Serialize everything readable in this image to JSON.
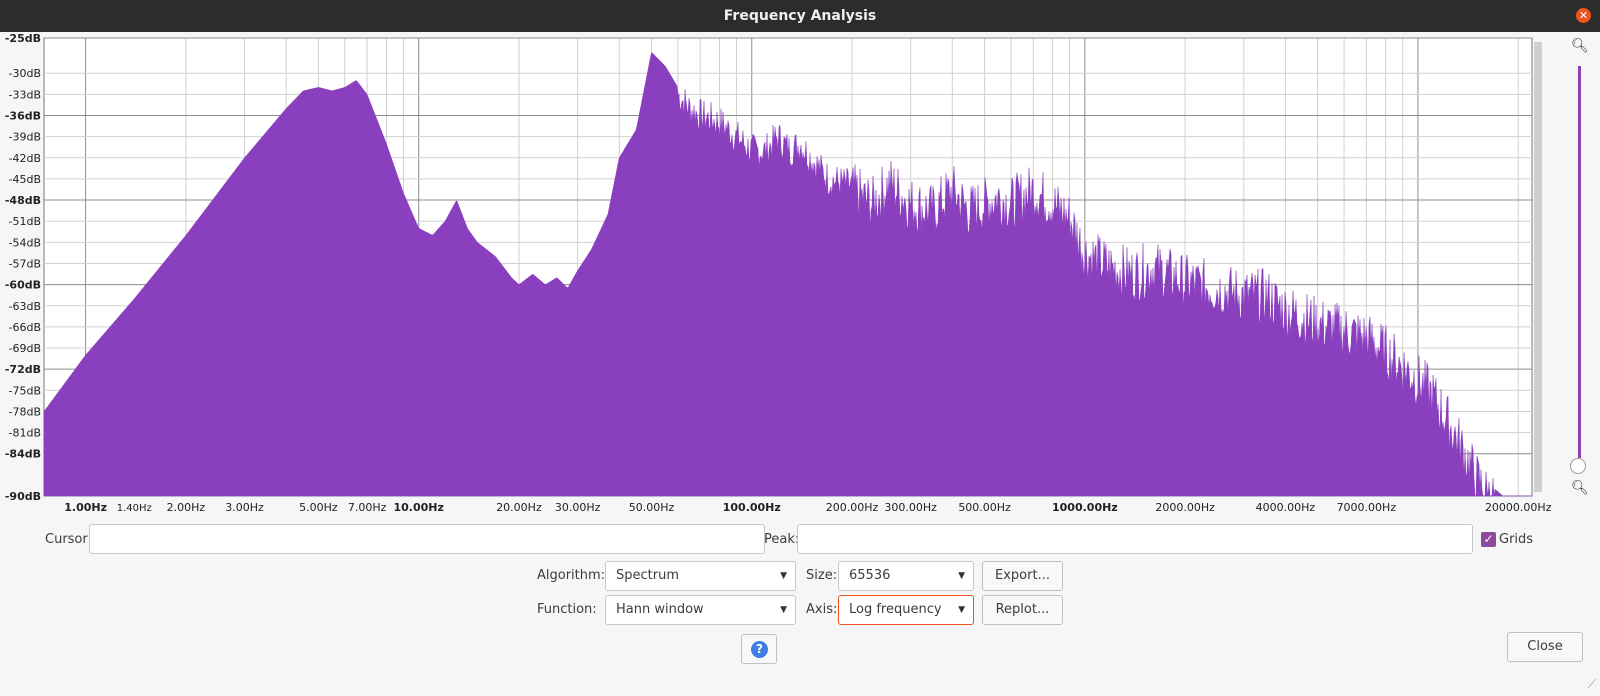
{
  "window": {
    "title": "Frequency Analysis"
  },
  "chart_data": {
    "type": "area",
    "x_scale": "log",
    "xlabel": "",
    "ylabel": "",
    "ylim": [
      -90,
      -25
    ],
    "xlim": [
      0.75,
      22000
    ],
    "grid": true,
    "color": "#8a3fbf",
    "y_ticks": [
      {
        "v": -25,
        "label": "-25dB",
        "bold": true
      },
      {
        "v": -30,
        "label": "-30dB"
      },
      {
        "v": -33,
        "label": "-33dB"
      },
      {
        "v": -36,
        "label": "-36dB",
        "bold": true
      },
      {
        "v": -39,
        "label": "-39dB"
      },
      {
        "v": -42,
        "label": "-42dB"
      },
      {
        "v": -45,
        "label": "-45dB"
      },
      {
        "v": -48,
        "label": "-48dB",
        "bold": true
      },
      {
        "v": -51,
        "label": "-51dB"
      },
      {
        "v": -54,
        "label": "-54dB"
      },
      {
        "v": -57,
        "label": "-57dB"
      },
      {
        "v": -60,
        "label": "-60dB",
        "bold": true
      },
      {
        "v": -63,
        "label": "-63dB"
      },
      {
        "v": -66,
        "label": "-66dB"
      },
      {
        "v": -69,
        "label": "-69dB"
      },
      {
        "v": -72,
        "label": "-72dB",
        "bold": true
      },
      {
        "v": -75,
        "label": "-75dB"
      },
      {
        "v": -78,
        "label": "-78dB"
      },
      {
        "v": -81,
        "label": "-81dB"
      },
      {
        "v": -84,
        "label": "-84dB",
        "bold": true
      },
      {
        "v": -90,
        "label": "-90dB",
        "bold": true
      }
    ],
    "x_ticks": [
      {
        "v": 1,
        "label": "1.00Hz",
        "bold": true
      },
      {
        "v": 1.4,
        "label": "1.40Hz",
        "small": true
      },
      {
        "v": 2,
        "label": "2.00Hz"
      },
      {
        "v": 3,
        "label": "3.00Hz"
      },
      {
        "v": 5,
        "label": "5.00Hz"
      },
      {
        "v": 7,
        "label": "7.00Hz"
      },
      {
        "v": 10,
        "label": "10.00Hz",
        "bold": true
      },
      {
        "v": 20,
        "label": "20.00Hz"
      },
      {
        "v": 30,
        "label": "30.00Hz"
      },
      {
        "v": 50,
        "label": "50.00Hz"
      },
      {
        "v": 100,
        "label": "100.00Hz",
        "bold": true
      },
      {
        "v": 200,
        "label": "200.00Hz"
      },
      {
        "v": 300,
        "label": "300.00Hz"
      },
      {
        "v": 500,
        "label": "500.00Hz"
      },
      {
        "v": 1000,
        "label": "1000.00Hz",
        "bold": true
      },
      {
        "v": 2000,
        "label": "2000.00Hz"
      },
      {
        "v": 4000,
        "label": "4000.00Hz"
      },
      {
        "v": 7000,
        "label": "7000.00Hz"
      },
      {
        "v": 20000,
        "label": "20000.00Hz"
      }
    ],
    "series": [
      {
        "x": [
          0.75,
          1,
          1.4,
          2,
          3,
          4,
          4.5,
          5,
          5.5,
          6,
          6.5,
          7,
          8,
          9,
          10,
          11,
          12,
          13,
          14,
          15,
          17,
          19,
          20,
          22,
          24,
          26,
          28,
          30,
          33,
          37,
          40,
          45,
          50,
          55,
          60,
          65,
          70,
          80,
          90,
          100,
          110,
          120,
          130,
          140,
          150,
          170,
          200,
          230,
          260,
          300,
          350,
          400,
          450,
          500,
          550,
          600,
          700,
          800,
          900,
          1000,
          1200,
          1400,
          1600,
          2000,
          2500,
          3000,
          3500,
          4000,
          5000,
          6000,
          7000,
          8000,
          9000,
          10000,
          11000,
          12000,
          13000,
          14000,
          15000,
          16000,
          17000,
          18000,
          20000,
          22000
        ],
        "y": [
          -78,
          -70,
          -62,
          -53,
          -42,
          -35,
          -32.5,
          -32,
          -32.5,
          -32,
          -31,
          -33,
          -40,
          -47,
          -52,
          -53,
          -51,
          -48,
          -52,
          -54,
          -56,
          -59,
          -60,
          -58.5,
          -60,
          -59,
          -60.5,
          -58,
          -55,
          -50,
          -42,
          -38,
          -27,
          -29,
          -32,
          -34,
          -35,
          -36,
          -38,
          -40,
          -40,
          -38,
          -40,
          -39,
          -41,
          -44,
          -45,
          -47,
          -44,
          -47,
          -48,
          -45,
          -48,
          -47,
          -46,
          -47,
          -45,
          -47,
          -49,
          -54,
          -56,
          -57,
          -56,
          -58,
          -59,
          -60,
          -60,
          -62,
          -64,
          -65,
          -66,
          -68,
          -70,
          -72,
          -74,
          -77,
          -80,
          -83,
          -86,
          -88,
          -89,
          -90,
          -90,
          -90
        ]
      }
    ]
  },
  "controls": {
    "cursor_label": "Cursor:",
    "cursor_value": "",
    "peak_label": "Peak:",
    "peak_value": "",
    "grids_label": "Grids",
    "grids_checked": true,
    "algorithm_label": "Algorithm:",
    "algorithm_value": "Spectrum",
    "size_label": "Size:",
    "size_value": "65536",
    "export_label": "Export...",
    "function_label": "Function:",
    "function_value": "Hann window",
    "axis_label": "Axis:",
    "axis_value": "Log frequency",
    "replot_label": "Replot...",
    "close_label": "Close"
  },
  "icons": {
    "zoom_in": "zoom-in-icon",
    "zoom_out": "zoom-out-icon",
    "help": "help-icon",
    "close": "close-icon"
  }
}
